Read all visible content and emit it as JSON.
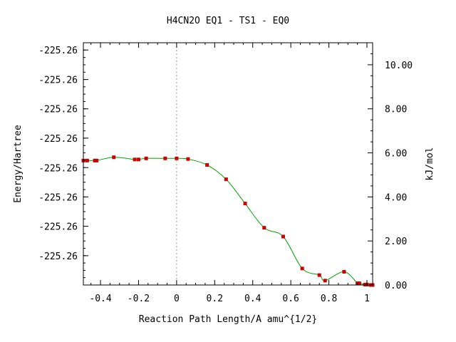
{
  "chart_data": {
    "type": "line",
    "title": "H4CN2O   EQ1 - TS1 - EQ0",
    "xlabel": "Reaction Path Length/A amu^{1/2}",
    "ylabel": "Energy/Hartree",
    "y2label": "kJ/mol",
    "xlim": [
      -0.49,
      1.03
    ],
    "ylim_kjmol": [
      0,
      11.0
    ],
    "x_ticks": [
      -0.4,
      -0.2,
      0,
      0.2,
      0.4,
      0.6,
      0.8,
      1
    ],
    "x_tick_labels": [
      "-0.4",
      "-0.2",
      "0",
      "0.2",
      "0.4",
      "0.6",
      "0.8",
      "1"
    ],
    "y_left_tick_values": [
      10.67,
      9.33,
      8.0,
      6.67,
      5.33,
      4.0,
      2.67,
      1.33
    ],
    "y_left_tick_labels": [
      "-225.26",
      "-225.26",
      "-225.26",
      "-225.26",
      "-225.26",
      "-225.26",
      "-225.26",
      "-225.26"
    ],
    "y_right_ticks": [
      0,
      2,
      4,
      6,
      8,
      10
    ],
    "y_right_tick_labels": [
      "0.00",
      "2.00",
      "4.00",
      "6.00",
      "8.00",
      "10.00"
    ],
    "ts_line_x": 0,
    "grid": false,
    "line_color": "#00a000",
    "marker_color": "#cc0000",
    "vline_color": "#999999",
    "series": [
      {
        "x": [
          -0.49,
          -0.47,
          -0.43,
          -0.42,
          -0.33,
          -0.22,
          -0.2,
          -0.16,
          -0.06,
          0,
          0.06,
          0.16,
          0.26,
          0.36,
          0.46,
          0.56,
          0.66,
          0.75,
          0.78,
          0.88,
          0.95,
          0.96,
          0.99,
          1.0,
          1.02,
          1.03
        ],
        "y": [
          5.65,
          5.65,
          5.65,
          5.65,
          5.8,
          5.7,
          5.7,
          5.75,
          5.75,
          5.75,
          5.72,
          5.45,
          4.8,
          3.7,
          2.6,
          2.2,
          0.75,
          0.45,
          0.2,
          0.6,
          0.08,
          0.08,
          0.02,
          0.02,
          0.0,
          0.0
        ]
      }
    ]
  }
}
